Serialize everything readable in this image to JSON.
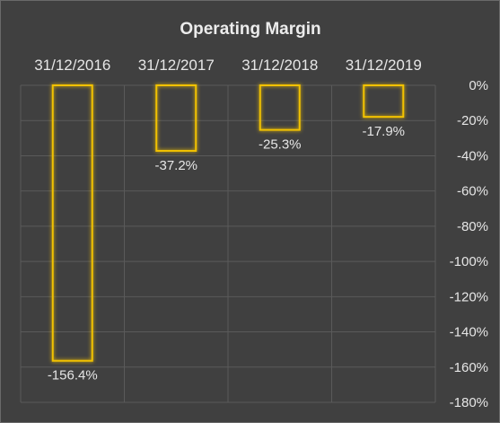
{
  "chart_data": {
    "type": "bar",
    "title": "Operating Margin",
    "categories": [
      "31/12/2016",
      "31/12/2017",
      "31/12/2018",
      "31/12/2019"
    ],
    "values": [
      -156.4,
      -37.2,
      -25.3,
      -17.9
    ],
    "value_labels": [
      "-156.4%",
      "-37.2%",
      "-25.3%",
      "-17.9%"
    ],
    "ylim": [
      -180,
      0
    ],
    "y_ticks": [
      0,
      -20,
      -40,
      -60,
      -80,
      -100,
      -120,
      -140,
      -160,
      -180
    ],
    "y_tick_labels": [
      "0%",
      "-20%",
      "-40%",
      "-60%",
      "-80%",
      "-100%",
      "-120%",
      "-140%",
      "-160%",
      "-180%"
    ],
    "xlabel": "",
    "ylabel": "",
    "y_axis_side": "right",
    "x_labels_position": "top",
    "grid": true,
    "colors": {
      "background": "#404040",
      "bar_outline": "#f2c200",
      "bar_glow": "#ffd21f",
      "gridline": "#5a5a5a",
      "text": "#e6e6e6"
    }
  }
}
